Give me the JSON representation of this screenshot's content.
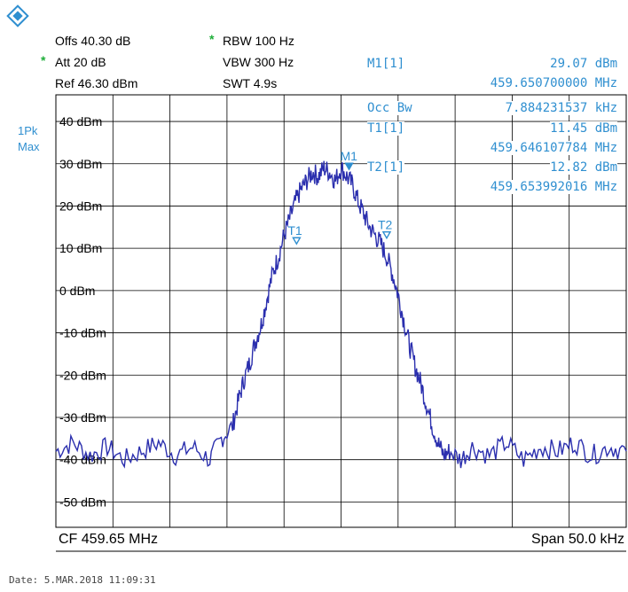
{
  "logo": "rohde-schwarz-logo",
  "settings": {
    "offs": "Offs 40.30 dB",
    "att": "Att  20 dB",
    "att_star": "*",
    "ref": "Ref  46.30 dBm",
    "rbw": "RBW 100 Hz",
    "rbw_star": "*",
    "vbw": "VBW 300 Hz",
    "swt": "SWT 4.9s"
  },
  "trace_label": {
    "line1": "1Pk",
    "line2": "Max"
  },
  "marker_table": {
    "m1_label": "M1[1]",
    "m1_level": "29.07 dBm",
    "m1_freq": "459.650700000 MHz",
    "occbw_label": "Occ Bw",
    "occbw_value": "7.884231537 kHz",
    "t1_label": "T1[1]",
    "t1_level": "11.45 dBm",
    "t1_freq": "459.646107784 MHz",
    "t2_label": "T2[1]",
    "t2_level": "12.82 dBm",
    "t2_freq": "459.653992016 MHz"
  },
  "footer": {
    "cf": "CF 459.65 MHz",
    "span": "Span 50.0 kHz",
    "date": "Date: 5.MAR.2018  11:09:31"
  },
  "colors": {
    "trace": "#2b2fae",
    "marker": "#2f8fd0",
    "green": "#1fae3a"
  },
  "chart_data": {
    "type": "line",
    "ytick_labels": [
      "40 dBm",
      "30 dBm",
      "20 dBm",
      "10 dBm",
      "0 dBm",
      "-10 dBm",
      "-20 dBm",
      "-30 dBm",
      "-40 dBm",
      "-50 dBm"
    ],
    "ylim": [
      -56,
      46.3
    ],
    "xlim_kHz_offset": [
      -25,
      25
    ],
    "grid": true,
    "series": [
      {
        "x": [
          -25,
          -23.5,
          -22,
          -20.5,
          -19,
          -17.5,
          -16,
          -14.5,
          -13,
          -11.5,
          -10.5,
          -9.5,
          -9,
          -8.5,
          -8,
          -7.5,
          -7,
          -6.5,
          -6,
          -5.5,
          -5,
          -4.5,
          -4,
          -3.5,
          -3,
          -2.5,
          -2,
          -1.5,
          -1,
          -0.5,
          0,
          0.5,
          1,
          1.5,
          2,
          2.5,
          3,
          3.5,
          4,
          4.5,
          5,
          5.5,
          6,
          6.5,
          7,
          7.5,
          8,
          8.5,
          9,
          9.5,
          10.5,
          11.5,
          13,
          14.5,
          16,
          17.5,
          19,
          20.5,
          22,
          23.5,
          25
        ],
        "values": [
          -38,
          -36,
          -39,
          -37,
          -40,
          -38,
          -36,
          -39,
          -37,
          -40,
          -35,
          -32,
          -26,
          -21,
          -17,
          -12,
          -8,
          -2,
          4,
          8,
          13,
          17,
          21,
          24,
          26,
          28,
          27,
          29,
          28,
          26,
          29.07,
          27,
          25,
          21,
          18,
          15,
          13,
          11,
          8,
          4,
          -1,
          -7,
          -13,
          -18,
          -22,
          -27,
          -32,
          -36,
          -39,
          -38,
          -40,
          -37,
          -39,
          -36,
          -40,
          -37,
          -38,
          -36,
          -39,
          -37,
          -38
        ]
      }
    ],
    "markers": [
      {
        "label": "M1",
        "x": 0.7,
        "y": 29.07
      },
      {
        "label": "T1",
        "x": -3.9,
        "y": 11.45
      },
      {
        "label": "T2",
        "x": 4.0,
        "y": 12.82
      }
    ]
  }
}
